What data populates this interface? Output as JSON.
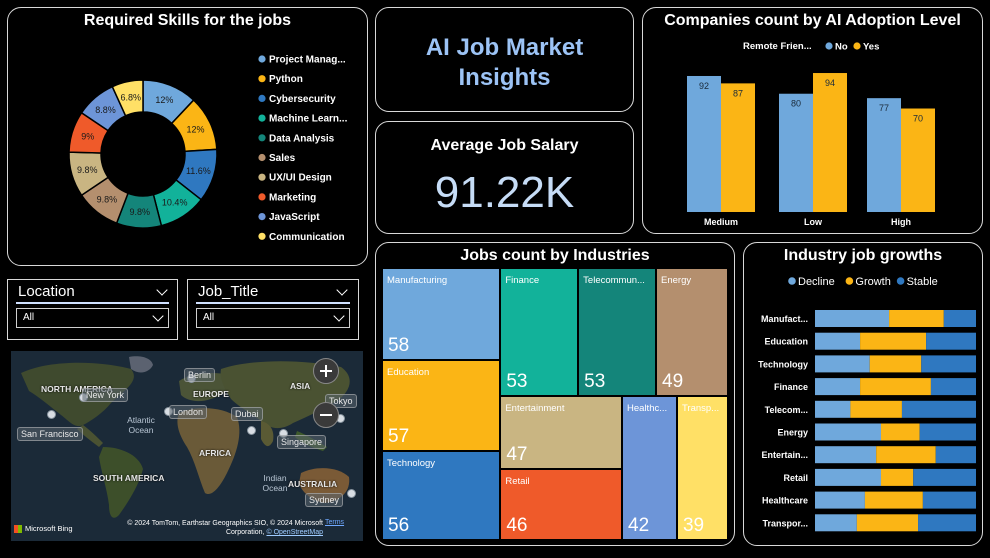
{
  "title_card": {
    "line1": "AI Job Market",
    "line2": "Insights"
  },
  "salary_card": {
    "title": "Average Job Salary",
    "value": "91.22K"
  },
  "slicers": {
    "location": {
      "label": "Location",
      "value": "All"
    },
    "job_title": {
      "label": "Job_Title",
      "value": "All"
    }
  },
  "map": {
    "regions": [
      "NORTH AMERICA",
      "EUROPE",
      "ASIA",
      "AFRICA",
      "SOUTH AMERICA",
      "AUSTRALIA"
    ],
    "oceans": [
      "Atlantic Ocean",
      "Indian Ocean"
    ],
    "cities": [
      "Berlin",
      "New York",
      "London",
      "Dubai",
      "Tokyo",
      "San Francisco",
      "Singapore",
      "Sydney"
    ],
    "attribution": "© 2024 TomTom, Earthstar Geographics SIO, © 2024 Microsoft Corporation,",
    "attribution_link": "© OpenStreetMap",
    "terms": "Terms",
    "brand": "Microsoft Bing"
  },
  "colors": {
    "blue": "#6fa8dc",
    "orange": "#fbb515",
    "steel": "#2f78c0"
  },
  "chart_data": [
    {
      "type": "pie",
      "title": "Required Skills for the jobs",
      "donut": true,
      "categories": [
        "Project Manag...",
        "Python",
        "Cybersecurity",
        "Machine Learn...",
        "Data Analysis",
        "Sales",
        "UX/UI Design",
        "Marketing",
        "JavaScript",
        "Communication"
      ],
      "values": [
        12,
        12,
        11.6,
        10.4,
        9.8,
        9.8,
        9.8,
        9,
        8.8,
        6.8
      ],
      "data_labels": [
        "12%",
        "12%",
        "11.6%",
        "10.4%",
        "9.8%",
        "9.8%",
        "9.8%",
        "9%",
        "8.8%",
        "6.8%"
      ],
      "colors": [
        "#6fa8dc",
        "#fbb515",
        "#2f78c0",
        "#12b29a",
        "#14857a",
        "#b48f6e",
        "#c9b582",
        "#ef5a2a",
        "#6d95d8",
        "#ffe066"
      ],
      "legend": "right"
    },
    {
      "type": "bar",
      "title": "Companies count by AI Adoption Level",
      "legend_title": "Remote Frien...",
      "categories": [
        "Medium",
        "Low",
        "High"
      ],
      "series": [
        {
          "name": "No",
          "values": [
            92,
            80,
            77
          ],
          "color": "#6fa8dc"
        },
        {
          "name": "Yes",
          "values": [
            87,
            94,
            70
          ],
          "color": "#fbb515"
        }
      ],
      "ylim": [
        0,
        100
      ],
      "legend": "top-left"
    },
    {
      "type": "table",
      "subtype": "treemap",
      "title": "Jobs count by Industries",
      "categories": [
        "Manufacturing",
        "Education",
        "Technology",
        "Finance",
        "Telecommun...",
        "Energy",
        "Entertainment",
        "Retail",
        "Healthc...",
        "Transp..."
      ],
      "values": [
        58,
        57,
        56,
        53,
        53,
        49,
        47,
        46,
        42,
        39
      ],
      "colors": [
        "#6fa8dc",
        "#fbb515",
        "#2f78c0",
        "#12b29a",
        "#14857a",
        "#b48f6e",
        "#c9b582",
        "#ef5a2a",
        "#6d95d8",
        "#ffe066"
      ]
    },
    {
      "type": "bar",
      "subtype": "stacked-horizontal-100",
      "title": "Industry job growths",
      "categories": [
        "Manufact...",
        "Education",
        "Technology",
        "Finance",
        "Telecom...",
        "Energy",
        "Entertain...",
        "Retail",
        "Healthcare",
        "Transpor..."
      ],
      "series": [
        {
          "name": "Decline",
          "values": [
            46,
            28,
            34,
            28,
            22,
            41,
            38,
            41,
            31,
            26
          ],
          "color": "#6fa8dc"
        },
        {
          "name": "Growth",
          "values": [
            34,
            41,
            32,
            44,
            32,
            24,
            37,
            20,
            36,
            38
          ],
          "color": "#fbb515"
        },
        {
          "name": "Stable",
          "values": [
            20,
            31,
            34,
            28,
            46,
            35,
            25,
            39,
            33,
            36
          ],
          "color": "#2f78c0"
        }
      ],
      "xlim": [
        0,
        100
      ],
      "legend": "top"
    }
  ]
}
